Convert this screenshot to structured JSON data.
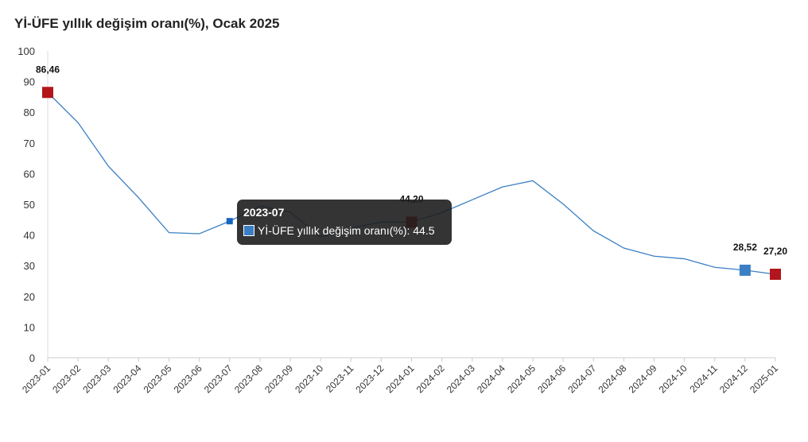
{
  "chart_data": {
    "type": "line",
    "title": "Yİ-ÜFE yıllık değişim oranı(%), Ocak 2025",
    "xlabel": "",
    "ylabel": "",
    "ylim": [
      0,
      100
    ],
    "yticks": [
      0,
      10,
      20,
      30,
      40,
      50,
      60,
      70,
      80,
      90,
      100
    ],
    "categories": [
      "2023-01",
      "2023-02",
      "2023-03",
      "2023-04",
      "2023-05",
      "2023-06",
      "2023-07",
      "2023-08",
      "2023-09",
      "2023-10",
      "2023-11",
      "2023-12",
      "2024-01",
      "2024-02",
      "2024-03",
      "2024-04",
      "2024-05",
      "2024-06",
      "2024-07",
      "2024-08",
      "2024-09",
      "2024-10",
      "2024-11",
      "2024-12",
      "2025-01"
    ],
    "series": [
      {
        "name": "Yİ-ÜFE yıllık değişim oranı(%)",
        "color": "#3a7fc4",
        "values": [
          86.46,
          76.61,
          62.45,
          52.11,
          40.76,
          40.42,
          44.5,
          49.41,
          47.44,
          39.39,
          42.25,
          44.22,
          44.2,
          47.29,
          51.47,
          55.66,
          57.68,
          50.09,
          41.37,
          35.75,
          33.09,
          32.24,
          29.47,
          28.52,
          27.2
        ]
      }
    ],
    "highlights": [
      {
        "index": 0,
        "label": "86,46",
        "color": "#b2161c"
      },
      {
        "index": 12,
        "label": "44,20",
        "color": "#b2161c"
      },
      {
        "index": 23,
        "label": "28,52",
        "color": "#3a7fc4"
      },
      {
        "index": 24,
        "label": "27,20",
        "color": "#b2161c"
      }
    ],
    "grid": false,
    "legend": "none"
  },
  "tooltip": {
    "title": "2023-07",
    "text": "Yİ-ÜFE yıllık değişim oranı(%): 44.5",
    "index": 6
  }
}
